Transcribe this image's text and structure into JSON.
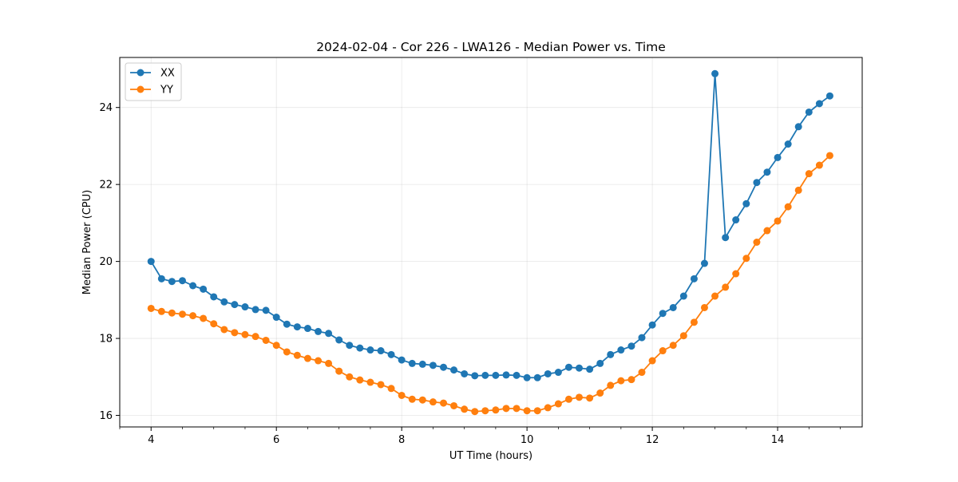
{
  "chart_data": {
    "type": "line",
    "title": "2024-02-04 - Cor 226 - LWA126 - Median Power vs. Time",
    "xlabel": "UT Time (hours)",
    "ylabel": "Median Power (CPU)",
    "xlim": [
      3.5,
      15.35
    ],
    "ylim": [
      15.7,
      25.3
    ],
    "xticks": [
      4,
      6,
      8,
      10,
      12,
      14
    ],
    "xtick_labels": [
      "4",
      "6",
      "8",
      "10",
      "12",
      "14"
    ],
    "yticks": [
      16,
      18,
      20,
      22,
      24
    ],
    "ytick_labels": [
      "16",
      "18",
      "20",
      "22",
      "24"
    ],
    "grid": true,
    "legend_position": "top-left",
    "x": [
      4.0,
      4.167,
      4.333,
      4.5,
      4.667,
      4.833,
      5.0,
      5.167,
      5.333,
      5.5,
      5.667,
      5.833,
      6.0,
      6.167,
      6.333,
      6.5,
      6.667,
      6.833,
      7.0,
      7.167,
      7.333,
      7.5,
      7.667,
      7.833,
      8.0,
      8.167,
      8.333,
      8.5,
      8.667,
      8.833,
      9.0,
      9.167,
      9.333,
      9.5,
      9.667,
      9.833,
      10.0,
      10.167,
      10.333,
      10.5,
      10.667,
      10.833,
      11.0,
      11.167,
      11.333,
      11.5,
      11.667,
      11.833,
      12.0,
      12.167,
      12.333,
      12.5,
      12.667,
      12.833,
      13.0,
      13.167,
      13.333,
      13.5,
      13.667,
      13.833,
      14.0,
      14.167,
      14.333,
      14.5,
      14.667,
      14.833
    ],
    "series": [
      {
        "name": "XX",
        "color": "#1f77b4",
        "values": [
          20.0,
          19.55,
          19.48,
          19.5,
          19.37,
          19.28,
          19.08,
          18.95,
          18.88,
          18.82,
          18.75,
          18.73,
          18.55,
          18.37,
          18.3,
          18.26,
          18.18,
          18.13,
          17.96,
          17.82,
          17.75,
          17.7,
          17.68,
          17.58,
          17.44,
          17.35,
          17.33,
          17.3,
          17.25,
          17.18,
          17.08,
          17.03,
          17.04,
          17.04,
          17.05,
          17.04,
          16.98,
          16.98,
          17.08,
          17.12,
          17.25,
          17.23,
          17.2,
          17.35,
          17.58,
          17.7,
          17.8,
          18.02,
          18.35,
          18.65,
          18.8,
          19.1,
          19.55,
          19.95,
          24.88,
          20.62,
          21.08,
          21.5,
          22.05,
          22.32,
          22.7,
          23.05,
          23.5,
          23.88,
          24.1,
          24.3
        ]
      },
      {
        "name": "YY",
        "color": "#ff7f0e",
        "values": [
          18.78,
          18.7,
          18.66,
          18.63,
          18.59,
          18.52,
          18.38,
          18.23,
          18.15,
          18.1,
          18.05,
          17.95,
          17.82,
          17.65,
          17.56,
          17.48,
          17.42,
          17.35,
          17.15,
          17.0,
          16.92,
          16.86,
          16.8,
          16.7,
          16.52,
          16.42,
          16.4,
          16.35,
          16.32,
          16.25,
          16.16,
          16.1,
          16.12,
          16.14,
          16.18,
          16.18,
          16.12,
          16.12,
          16.2,
          16.3,
          16.42,
          16.47,
          16.45,
          16.58,
          16.78,
          16.9,
          16.93,
          17.12,
          17.42,
          17.68,
          17.82,
          18.07,
          18.42,
          18.8,
          19.1,
          19.33,
          19.68,
          20.08,
          20.5,
          20.8,
          21.05,
          21.42,
          21.85,
          22.28,
          22.5,
          22.75
        ]
      }
    ]
  }
}
